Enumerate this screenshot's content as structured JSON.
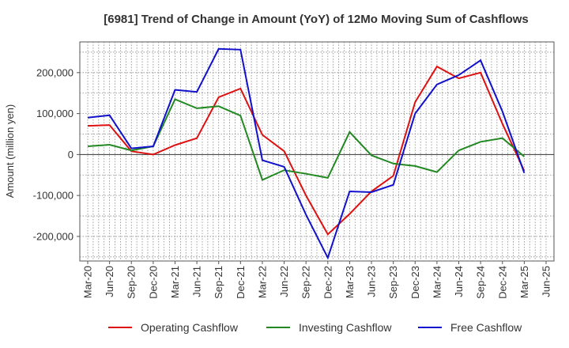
{
  "chart_data": {
    "type": "line",
    "title": "[6981]  Trend of Change in Amount (YoY) of 12Mo Moving Sum of Cashflows",
    "xlabel": "",
    "ylabel": "Amount (million yen)",
    "ylim": [
      -260000,
      275000
    ],
    "yticks": [
      200000,
      100000,
      0,
      -100000,
      -200000
    ],
    "ytick_labels": [
      "200,000",
      "100,000",
      "0",
      "-100,000",
      "-200,000"
    ],
    "categories": [
      "Mar-20",
      "Jun-20",
      "Sep-20",
      "Dec-20",
      "Mar-21",
      "Jun-21",
      "Sep-21",
      "Dec-21",
      "Mar-22",
      "Jun-22",
      "Sep-22",
      "Dec-22",
      "Mar-23",
      "Jun-23",
      "Sep-23",
      "Dec-23",
      "Mar-24",
      "Jun-24",
      "Sep-24",
      "Dec-24",
      "Mar-25",
      "Jun-25"
    ],
    "grid": true,
    "legend_position": "bottom",
    "series": [
      {
        "name": "Operating Cashflow",
        "color": "#dd1111",
        "values": [
          70000,
          72000,
          8000,
          0,
          23000,
          40000,
          140000,
          161000,
          48000,
          8000,
          -100000,
          -195000,
          -145000,
          -90000,
          -52000,
          128000,
          215000,
          186000,
          200000,
          75000,
          -40000,
          null
        ]
      },
      {
        "name": "Investing Cashflow",
        "color": "#228822",
        "values": [
          20000,
          24000,
          10000,
          20000,
          135000,
          113000,
          118000,
          95000,
          -62000,
          -38000,
          -47000,
          -57000,
          55000,
          -2000,
          -22000,
          -28000,
          -43000,
          10000,
          31000,
          40000,
          -5000,
          null
        ]
      },
      {
        "name": "Free Cashflow",
        "color": "#1111cc",
        "values": [
          90000,
          96000,
          15000,
          20000,
          158000,
          153000,
          258000,
          256000,
          -14000,
          -30000,
          -147000,
          -252000,
          -90000,
          -92000,
          -74000,
          100000,
          171000,
          194000,
          230000,
          105000,
          -45000,
          null
        ]
      }
    ]
  }
}
